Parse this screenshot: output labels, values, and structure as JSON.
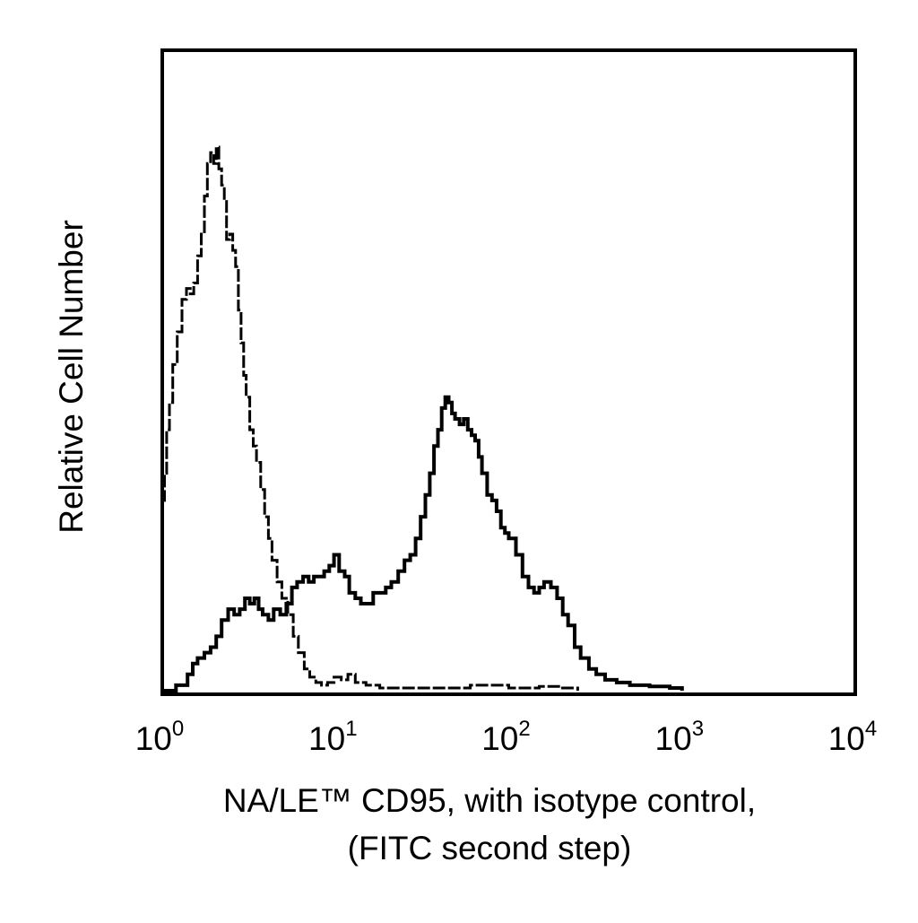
{
  "chart_data": {
    "type": "line",
    "title": "",
    "xlabel_lines": [
      "NA/LE™ CD95, with isotype control,",
      "(FITC second step)"
    ],
    "ylabel": "Relative Cell Number",
    "x_scale": "log",
    "xlim": [
      1,
      10000
    ],
    "ylim": [
      0,
      100
    ],
    "grid": false,
    "legend": "none",
    "x_ticks": [
      {
        "base": "10",
        "exp": "0",
        "value": 1
      },
      {
        "base": "10",
        "exp": "1",
        "value": 10
      },
      {
        "base": "10",
        "exp": "2",
        "value": 100
      },
      {
        "base": "10",
        "exp": "3",
        "value": 1000
      },
      {
        "base": "10",
        "exp": "4",
        "value": 10000
      }
    ],
    "series": [
      {
        "style": "dashed",
        "color": "#000000",
        "x": [
          1.0,
          1.03,
          1.06,
          1.1,
          1.15,
          1.22,
          1.3,
          1.38,
          1.45,
          1.52,
          1.6,
          1.68,
          1.75,
          1.82,
          1.9,
          1.98,
          2.05,
          2.12,
          2.2,
          2.28,
          2.35,
          2.45,
          2.55,
          2.65,
          2.75,
          2.85,
          2.95,
          3.05,
          3.2,
          3.35,
          3.5,
          3.7,
          3.9,
          4.1,
          4.3,
          4.6,
          4.9,
          5.3,
          5.7,
          6.1,
          6.6,
          7.1,
          7.7,
          8.3,
          9.0,
          9.8,
          10.8,
          11.8,
          13.0,
          15.0,
          18.0,
          25.0,
          40.0,
          60.0,
          100.0,
          150.0,
          200.0,
          250.0
        ],
        "y": [
          35,
          40,
          48,
          53,
          60,
          66,
          72,
          74,
          73,
          75,
          80,
          84,
          91,
          97,
          99,
          97,
          100,
          96,
          93,
          90,
          83,
          84,
          81,
          78,
          70,
          64,
          58,
          54,
          48,
          45,
          42,
          37,
          32,
          28,
          24,
          20,
          17,
          14,
          10,
          7,
          4,
          2.5,
          1.5,
          1,
          1.5,
          2.5,
          2,
          3,
          1.5,
          1,
          0.5,
          0.5,
          0.5,
          1,
          0.5,
          0.8,
          0.5,
          0
        ]
      },
      {
        "style": "solid",
        "color": "#000000",
        "x": [
          1.0,
          1.2,
          1.4,
          1.5,
          1.6,
          1.75,
          1.9,
          2.05,
          2.2,
          2.4,
          2.6,
          2.8,
          3.0,
          3.2,
          3.4,
          3.6,
          3.8,
          4.1,
          4.4,
          4.8,
          5.2,
          5.6,
          6.0,
          6.5,
          7.0,
          7.5,
          8.0,
          8.6,
          9.2,
          9.8,
          10.5,
          11.3,
          12.0,
          13.0,
          14.0,
          15.0,
          16.5,
          18.0,
          19.5,
          21.0,
          23.0,
          25.0,
          27.0,
          29.0,
          31.0,
          33.0,
          35.0,
          37.0,
          39.0,
          41.0,
          43.0,
          45.0,
          47.0,
          49.0,
          52.0,
          55.0,
          58.0,
          61.0,
          64.0,
          67.0,
          70.0,
          75.0,
          80.0,
          85.0,
          90.0,
          95.0,
          100.0,
          110.0,
          120.0,
          130.0,
          140.0,
          150.0,
          160.0,
          175.0,
          190.0,
          205.0,
          220.0,
          240.0,
          260.0,
          290.0,
          320.0,
          360.0,
          420.0,
          500.0,
          650.0,
          850.0,
          1000.0
        ],
        "y": [
          0,
          1,
          3,
          5,
          6,
          7,
          8,
          10,
          13,
          15,
          14,
          15,
          17,
          16,
          17,
          15,
          14,
          13,
          15,
          14,
          16,
          19,
          20,
          21,
          20,
          21,
          21,
          22,
          23,
          25,
          22,
          21,
          18,
          17,
          16,
          16,
          18,
          18,
          19,
          20,
          22,
          24,
          25,
          28,
          32,
          36,
          40,
          45,
          48,
          52,
          54,
          53,
          51,
          50,
          49,
          50,
          48,
          47,
          46,
          43,
          40,
          36,
          35,
          33,
          30,
          29,
          28,
          25,
          21,
          19,
          18,
          19,
          20,
          19,
          17,
          14,
          12,
          8,
          6,
          4,
          3,
          2,
          1.5,
          1,
          0.8,
          0.5,
          0
        ]
      }
    ]
  }
}
